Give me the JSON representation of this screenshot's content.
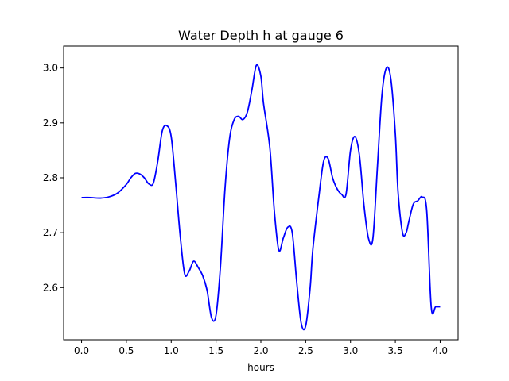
{
  "chart_data": {
    "type": "line",
    "title": "Water Depth h at gauge 6",
    "xlabel": "hours",
    "ylabel": "",
    "xlim": [
      -0.2,
      4.2
    ],
    "ylim": [
      2.505,
      3.04
    ],
    "xticks": [
      0.0,
      0.5,
      1.0,
      1.5,
      2.0,
      2.5,
      3.0,
      3.5,
      4.0
    ],
    "xtick_labels": [
      "0.0",
      "0.5",
      "1.0",
      "1.5",
      "2.0",
      "2.5",
      "3.0",
      "3.5",
      "4.0"
    ],
    "yticks": [
      2.6,
      2.7,
      2.8,
      2.9,
      3.0
    ],
    "ytick_labels": [
      "2.6",
      "2.7",
      "2.8",
      "2.9",
      "3.0"
    ],
    "grid": false,
    "series": [
      {
        "color": "#0000ff",
        "x": [
          0.0,
          0.1,
          0.2,
          0.3,
          0.4,
          0.5,
          0.55,
          0.6,
          0.65,
          0.7,
          0.75,
          0.8,
          0.85,
          0.9,
          0.95,
          1.0,
          1.05,
          1.1,
          1.15,
          1.2,
          1.25,
          1.3,
          1.35,
          1.4,
          1.45,
          1.5,
          1.55,
          1.6,
          1.65,
          1.7,
          1.75,
          1.8,
          1.85,
          1.9,
          1.95,
          2.0,
          2.03,
          2.1,
          2.15,
          2.2,
          2.25,
          2.3,
          2.35,
          2.4,
          2.45,
          2.5,
          2.55,
          2.58,
          2.65,
          2.7,
          2.75,
          2.8,
          2.85,
          2.9,
          2.95,
          3.0,
          3.05,
          3.1,
          3.15,
          3.2,
          3.25,
          3.3,
          3.35,
          3.4,
          3.45,
          3.5,
          3.53,
          3.58,
          3.62,
          3.65,
          3.7,
          3.75,
          3.8,
          3.85,
          3.9,
          3.95,
          4.0
        ],
        "y": [
          2.764,
          2.764,
          2.763,
          2.765,
          2.772,
          2.788,
          2.8,
          2.808,
          2.807,
          2.8,
          2.789,
          2.79,
          2.83,
          2.885,
          2.895,
          2.875,
          2.79,
          2.695,
          2.625,
          2.63,
          2.648,
          2.637,
          2.622,
          2.595,
          2.545,
          2.55,
          2.64,
          2.78,
          2.87,
          2.905,
          2.912,
          2.906,
          2.92,
          2.96,
          3.005,
          2.985,
          2.935,
          2.855,
          2.74,
          2.668,
          2.69,
          2.71,
          2.7,
          2.61,
          2.535,
          2.53,
          2.6,
          2.67,
          2.77,
          2.83,
          2.835,
          2.8,
          2.78,
          2.77,
          2.77,
          2.85,
          2.875,
          2.84,
          2.75,
          2.69,
          2.69,
          2.82,
          2.95,
          3.0,
          2.98,
          2.88,
          2.775,
          2.7,
          2.7,
          2.72,
          2.752,
          2.758,
          2.765,
          2.74,
          2.565,
          2.565,
          2.565
        ]
      }
    ]
  }
}
